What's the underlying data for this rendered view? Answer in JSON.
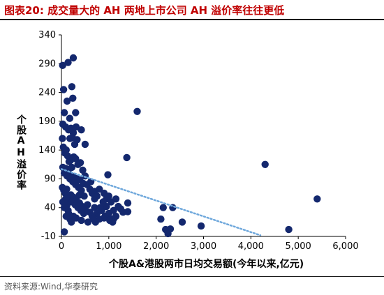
{
  "figure": {
    "title": "图表20:   成交量大的 AH 两地上市公司 AH 溢价率往往更低",
    "source": "资料来源:Wind,华泰研究"
  },
  "chart_data": {
    "type": "scatter",
    "xlabel": "个股A&港股两市日均交易额(今年以来,亿元)",
    "ylabel": "个股AH溢价率",
    "xlim": [
      0,
      6000
    ],
    "ylim": [
      -10,
      340
    ],
    "xticks": [
      "0",
      "1,000",
      "2,000",
      "3,000",
      "4,000",
      "5,000",
      "6,000"
    ],
    "yticks": [
      "-10",
      "40",
      "90",
      "140",
      "190",
      "240",
      "290",
      "340"
    ],
    "grid": false,
    "colors": {
      "points": "#14286e",
      "trend": "#6fa8dc"
    },
    "trendline": {
      "style": "dotted",
      "x": [
        0,
        4200
      ],
      "y": [
        107,
        -8
      ]
    },
    "points": [
      [
        25,
        287
      ],
      [
        140,
        292
      ],
      [
        250,
        300
      ],
      [
        45,
        245
      ],
      [
        220,
        250
      ],
      [
        240,
        230
      ],
      [
        120,
        225
      ],
      [
        300,
        205
      ],
      [
        175,
        195
      ],
      [
        60,
        205
      ],
      [
        1600,
        207
      ],
      [
        30,
        185
      ],
      [
        90,
        180
      ],
      [
        150,
        175
      ],
      [
        200,
        178
      ],
      [
        250,
        170
      ],
      [
        310,
        180
      ],
      [
        180,
        160
      ],
      [
        230,
        162
      ],
      [
        280,
        150
      ],
      [
        330,
        158
      ],
      [
        420,
        175
      ],
      [
        500,
        150
      ],
      [
        20,
        160
      ],
      [
        40,
        145
      ],
      [
        70,
        135
      ],
      [
        100,
        140
      ],
      [
        130,
        130
      ],
      [
        160,
        120
      ],
      [
        190,
        122
      ],
      [
        220,
        110
      ],
      [
        260,
        128
      ],
      [
        300,
        125
      ],
      [
        350,
        115
      ],
      [
        400,
        118
      ],
      [
        450,
        105
      ],
      [
        30,
        110
      ],
      [
        60,
        100
      ],
      [
        90,
        108
      ],
      [
        120,
        95
      ],
      [
        150,
        100
      ],
      [
        180,
        90
      ],
      [
        210,
        95
      ],
      [
        240,
        85
      ],
      [
        270,
        92
      ],
      [
        300,
        80
      ],
      [
        330,
        90
      ],
      [
        360,
        75
      ],
      [
        390,
        88
      ],
      [
        420,
        70
      ],
      [
        460,
        82
      ],
      [
        500,
        95
      ],
      [
        540,
        80
      ],
      [
        1380,
        127
      ],
      [
        600,
        72
      ],
      [
        650,
        65
      ],
      [
        700,
        68
      ],
      [
        750,
        60
      ],
      [
        800,
        72
      ],
      [
        900,
        65
      ],
      [
        950,
        55
      ],
      [
        1000,
        60
      ],
      [
        980,
        97
      ],
      [
        20,
        75
      ],
      [
        50,
        70
      ],
      [
        80,
        65
      ],
      [
        110,
        72
      ],
      [
        140,
        60
      ],
      [
        170,
        55
      ],
      [
        200,
        62
      ],
      [
        230,
        50
      ],
      [
        260,
        58
      ],
      [
        290,
        45
      ],
      [
        320,
        52
      ],
      [
        350,
        40
      ],
      [
        380,
        48
      ],
      [
        410,
        35
      ],
      [
        440,
        42
      ],
      [
        470,
        30
      ],
      [
        500,
        38
      ],
      [
        550,
        45
      ],
      [
        600,
        32
      ],
      [
        650,
        25
      ],
      [
        700,
        40
      ],
      [
        750,
        30
      ],
      [
        800,
        20
      ],
      [
        850,
        35
      ],
      [
        900,
        22
      ],
      [
        950,
        42
      ],
      [
        1000,
        30
      ],
      [
        1050,
        50
      ],
      [
        1100,
        35
      ],
      [
        1150,
        55
      ],
      [
        1200,
        42
      ],
      [
        1250,
        38
      ],
      [
        1300,
        32
      ],
      [
        1400,
        48
      ],
      [
        1400,
        33
      ],
      [
        30,
        50
      ],
      [
        60,
        40
      ],
      [
        90,
        55
      ],
      [
        120,
        45
      ],
      [
        150,
        30
      ],
      [
        180,
        20
      ],
      [
        210,
        15
      ],
      [
        100,
        25
      ],
      [
        140,
        35
      ],
      [
        250,
        25
      ],
      [
        310,
        22
      ],
      [
        420,
        18
      ],
      [
        560,
        15
      ],
      [
        680,
        20
      ],
      [
        720,
        15
      ],
      [
        820,
        40
      ],
      [
        880,
        50
      ],
      [
        920,
        25
      ],
      [
        1050,
        20
      ],
      [
        1080,
        15
      ],
      [
        1150,
        25
      ],
      [
        1100,
        20
      ],
      [
        1020,
        18
      ],
      [
        2150,
        40
      ],
      [
        2350,
        40
      ],
      [
        2100,
        20
      ],
      [
        2200,
        2
      ],
      [
        2250,
        0
      ],
      [
        2300,
        3
      ],
      [
        2250,
        -5
      ],
      [
        2550,
        15
      ],
      [
        2950,
        8
      ],
      [
        4300,
        115
      ],
      [
        5400,
        55
      ],
      [
        4800,
        2
      ],
      [
        60,
        -2
      ],
      [
        700,
        55
      ],
      [
        480,
        60
      ],
      [
        380,
        62
      ],
      [
        620,
        85
      ]
    ]
  }
}
